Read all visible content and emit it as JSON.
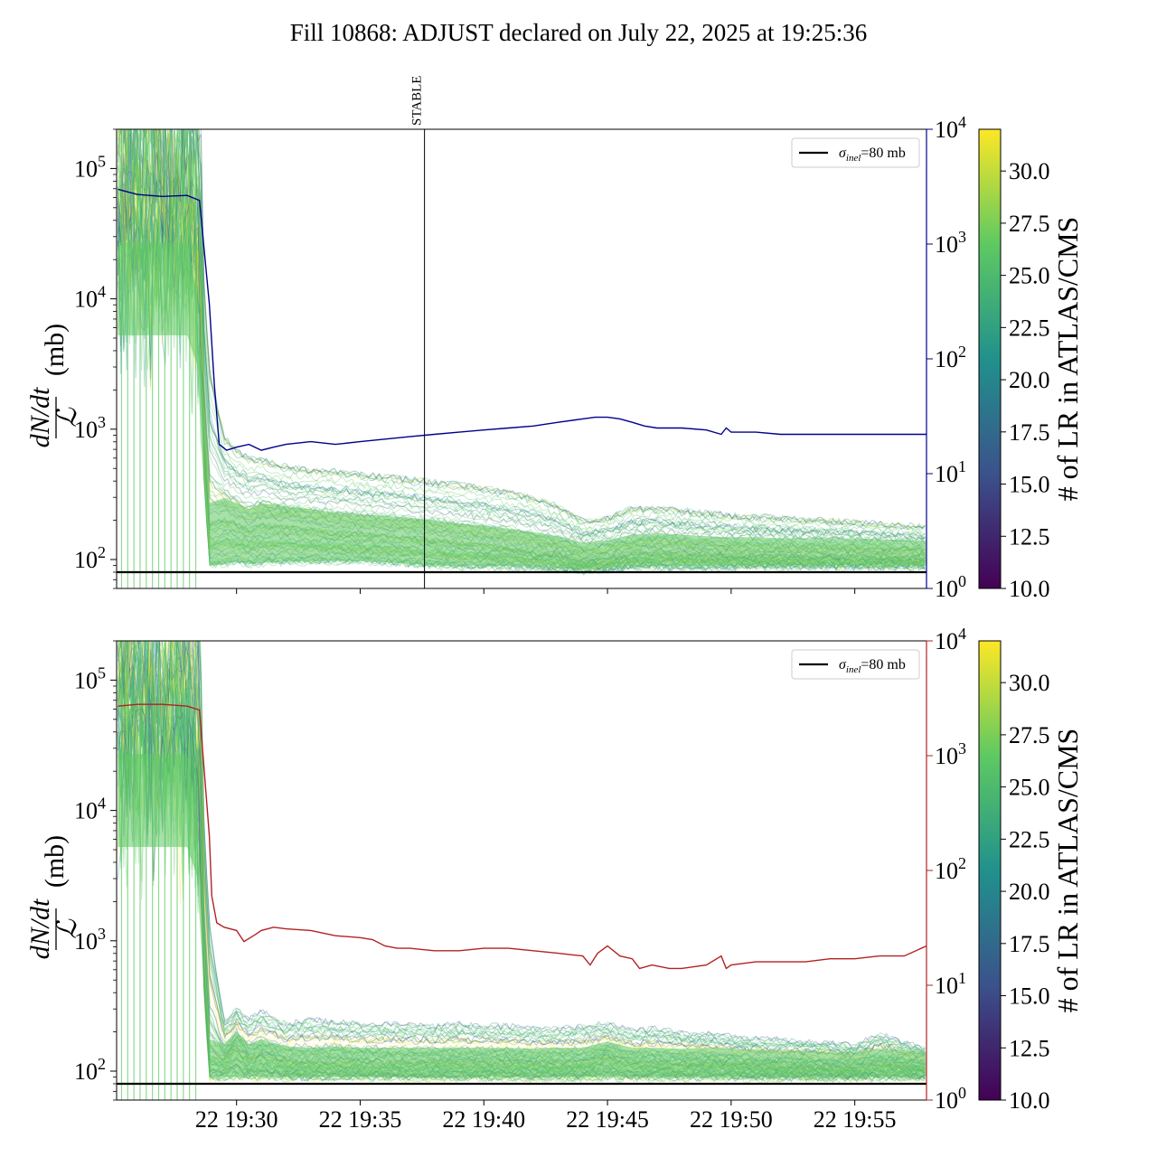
{
  "figure": {
    "title": "Fill 10868: ADJUST declared on July 22, 2025 at 19:25:36"
  },
  "colors": {
    "top_right_axis": "#00008b",
    "bottom_right_axis": "#b22222",
    "reference_line": "#000000",
    "viridis": [
      "#440154",
      "#3b528b",
      "#21918c",
      "#5ec962",
      "#fde725"
    ]
  },
  "chart_data": [
    {
      "panel": "top",
      "type": "line",
      "ylabel": "dN/dt / ℒ (mb)",
      "ylabel_parts": {
        "num": "dN/dt",
        "den": "ℒ",
        "unit": "(mb)"
      },
      "yscale": "log",
      "ylim": [
        60,
        200000
      ],
      "y_ticks": [
        {
          "mant": "10",
          "exp": "2"
        },
        {
          "mant": "10",
          "exp": "3"
        },
        {
          "mant": "10",
          "exp": "4"
        },
        {
          "mant": "10",
          "exp": "5"
        }
      ],
      "right_axis": {
        "yscale": "log",
        "ylim": [
          1,
          10000
        ],
        "color": "#00008b",
        "ticks": [
          {
            "mant": "10",
            "exp": "0"
          },
          {
            "mant": "10",
            "exp": "1"
          },
          {
            "mant": "10",
            "exp": "2"
          },
          {
            "mant": "10",
            "exp": "3"
          },
          {
            "mant": "10",
            "exp": "4"
          }
        ],
        "series": {
          "x_minutes": [
            25.2,
            26,
            27,
            28,
            28.5,
            28.9,
            29.1,
            29.3,
            29.6,
            30,
            30.5,
            31,
            31.5,
            32,
            33,
            34,
            35,
            36,
            37,
            38,
            39,
            40,
            41,
            42,
            43,
            44,
            44.5,
            45,
            45.5,
            46,
            46.5,
            47,
            48,
            49,
            49.6,
            49.8,
            50,
            51,
            52,
            53,
            54,
            55,
            56,
            57,
            57.9
          ],
          "y": [
            3000,
            2700,
            2600,
            2650,
            2400,
            300,
            60,
            18,
            16,
            17,
            18,
            16,
            17,
            18,
            19,
            18,
            19,
            20,
            21,
            22,
            23,
            24,
            25,
            26,
            28,
            30,
            31,
            31,
            30,
            28,
            26,
            25,
            25,
            24,
            22,
            25,
            23,
            23,
            22,
            22,
            22,
            22,
            22,
            22,
            22
          ]
        }
      },
      "reference_line": {
        "y": 80,
        "legend": "σ_inel=80 mb",
        "legend_sym": "σ",
        "legend_sub": "inel",
        "legend_rest": "=80 mb"
      },
      "vertical_marker": {
        "x_minutes": 37.6,
        "label": "STABLE"
      },
      "band": {
        "x_minutes": [
          25.2,
          26,
          27,
          28,
          28.4,
          28.9,
          29.5,
          30,
          30.5,
          31,
          32,
          33,
          34,
          35,
          36,
          37,
          38,
          39,
          40,
          41,
          42,
          43,
          44,
          45,
          46,
          47,
          48,
          49,
          50,
          51,
          52,
          53,
          54,
          55,
          56,
          57,
          57.9
        ],
        "low": [
          5000,
          5000,
          5000,
          5000,
          3000,
          85,
          88,
          92,
          88,
          90,
          92,
          92,
          93,
          93,
          92,
          88,
          86,
          85,
          85,
          85,
          84,
          82,
          80,
          82,
          85,
          85,
          85,
          85,
          86,
          86,
          86,
          86,
          86,
          86,
          86,
          86,
          86
        ],
        "mid": [
          20000,
          20000,
          20000,
          20000,
          8000,
          200,
          220,
          200,
          180,
          200,
          190,
          180,
          170,
          165,
          160,
          155,
          148,
          140,
          135,
          128,
          120,
          112,
          100,
          104,
          115,
          118,
          115,
          112,
          110,
          110,
          108,
          108,
          108,
          108,
          106,
          105,
          104
        ],
        "high": [
          200000,
          200000,
          200000,
          200000,
          100000,
          3000,
          900,
          700,
          620,
          600,
          520,
          500,
          480,
          460,
          440,
          420,
          400,
          380,
          360,
          330,
          300,
          260,
          200,
          210,
          250,
          250,
          240,
          230,
          220,
          215,
          210,
          205,
          200,
          195,
          190,
          185,
          180
        ]
      }
    },
    {
      "panel": "bottom",
      "type": "line",
      "ylabel": "dN/dt / ℒ (mb)",
      "ylabel_parts": {
        "num": "dN/dt",
        "den": "ℒ",
        "unit": "(mb)"
      },
      "yscale": "log",
      "ylim": [
        60,
        200000
      ],
      "y_ticks": [
        {
          "mant": "10",
          "exp": "2"
        },
        {
          "mant": "10",
          "exp": "3"
        },
        {
          "mant": "10",
          "exp": "4"
        },
        {
          "mant": "10",
          "exp": "5"
        }
      ],
      "x_ticks": [
        "22 19:30",
        "22 19:35",
        "22 19:40",
        "22 19:45",
        "22 19:50",
        "22 19:55"
      ],
      "x_tick_minutes": [
        30,
        35,
        40,
        45,
        50,
        55
      ],
      "xlim_minutes": [
        25.15,
        57.9
      ],
      "right_axis": {
        "yscale": "log",
        "ylim": [
          1,
          10000
        ],
        "color": "#b22222",
        "ticks": [
          {
            "mant": "10",
            "exp": "0"
          },
          {
            "mant": "10",
            "exp": "1"
          },
          {
            "mant": "10",
            "exp": "2"
          },
          {
            "mant": "10",
            "exp": "3"
          },
          {
            "mant": "10",
            "exp": "4"
          }
        ],
        "series": {
          "x_minutes": [
            25.2,
            26,
            27,
            28,
            28.5,
            28.9,
            29,
            29.2,
            29.5,
            30,
            30.3,
            30.8,
            31,
            31.5,
            32,
            33,
            34,
            35,
            35.5,
            36,
            36.5,
            37,
            38,
            39,
            40,
            41,
            42,
            43,
            44,
            44.3,
            44.6,
            45,
            45.5,
            46,
            46.3,
            46.8,
            47.5,
            48,
            49,
            49.6,
            49.8,
            50,
            51,
            52,
            53,
            54,
            55,
            56,
            57,
            57.9
          ],
          "y": [
            2700,
            2800,
            2800,
            2700,
            2500,
            200,
            60,
            35,
            32,
            30,
            24,
            28,
            30,
            32,
            31,
            30,
            27,
            26,
            25,
            22,
            21,
            21,
            20,
            20,
            21,
            21,
            20,
            19,
            18,
            15,
            19,
            22,
            18,
            17,
            14,
            15,
            14,
            14,
            15,
            18,
            14,
            15,
            16,
            16,
            16,
            17,
            17,
            18,
            18,
            22
          ]
        }
      },
      "reference_line": {
        "y": 80,
        "legend": "σ_inel=80 mb",
        "legend_sym": "σ",
        "legend_sub": "inel",
        "legend_rest": "=80 mb"
      },
      "band": {
        "x_minutes": [
          25.2,
          26,
          27,
          28,
          28.4,
          28.9,
          29.5,
          30,
          30.5,
          31,
          32,
          33,
          34,
          35,
          36,
          37,
          38,
          39,
          40,
          41,
          42,
          43,
          44,
          45,
          46,
          47,
          48,
          49,
          50,
          51,
          52,
          53,
          54,
          55,
          56,
          57,
          57.9
        ],
        "low": [
          5000,
          5000,
          5000,
          5000,
          3000,
          85,
          86,
          86,
          86,
          86,
          86,
          86,
          86,
          86,
          86,
          86,
          86,
          86,
          86,
          86,
          86,
          86,
          86,
          86,
          86,
          86,
          86,
          86,
          86,
          86,
          86,
          86,
          86,
          86,
          86,
          86,
          86
        ],
        "mid": [
          20000,
          20000,
          20000,
          20000,
          8000,
          130,
          120,
          150,
          120,
          130,
          115,
          112,
          115,
          112,
          112,
          112,
          112,
          112,
          112,
          112,
          110,
          112,
          112,
          125,
          112,
          112,
          110,
          112,
          110,
          108,
          106,
          106,
          104,
          104,
          110,
          108,
          104
        ],
        "high": [
          200000,
          200000,
          200000,
          200000,
          100000,
          1500,
          250,
          320,
          260,
          300,
          240,
          260,
          250,
          240,
          240,
          240,
          230,
          240,
          230,
          230,
          220,
          220,
          230,
          240,
          210,
          220,
          200,
          200,
          190,
          180,
          180,
          170,
          170,
          160,
          200,
          170,
          150
        ]
      }
    }
  ],
  "colorbars": [
    {
      "panel": "top",
      "label": "# of LR in ATLAS/CMS",
      "range": [
        10,
        32
      ],
      "ticks": [
        "10.0",
        "12.5",
        "15.0",
        "17.5",
        "20.0",
        "22.5",
        "25.0",
        "27.5",
        "30.0"
      ],
      "tick_values": [
        10,
        12.5,
        15,
        17.5,
        20,
        22.5,
        25,
        27.5,
        30
      ]
    },
    {
      "panel": "bottom",
      "label": "# of LR in ATLAS/CMS",
      "range": [
        10,
        32
      ],
      "ticks": [
        "10.0",
        "12.5",
        "15.0",
        "17.5",
        "20.0",
        "22.5",
        "25.0",
        "27.5",
        "30.0"
      ],
      "tick_values": [
        10,
        12.5,
        15,
        17.5,
        20,
        22.5,
        25,
        27.5,
        30
      ]
    }
  ]
}
